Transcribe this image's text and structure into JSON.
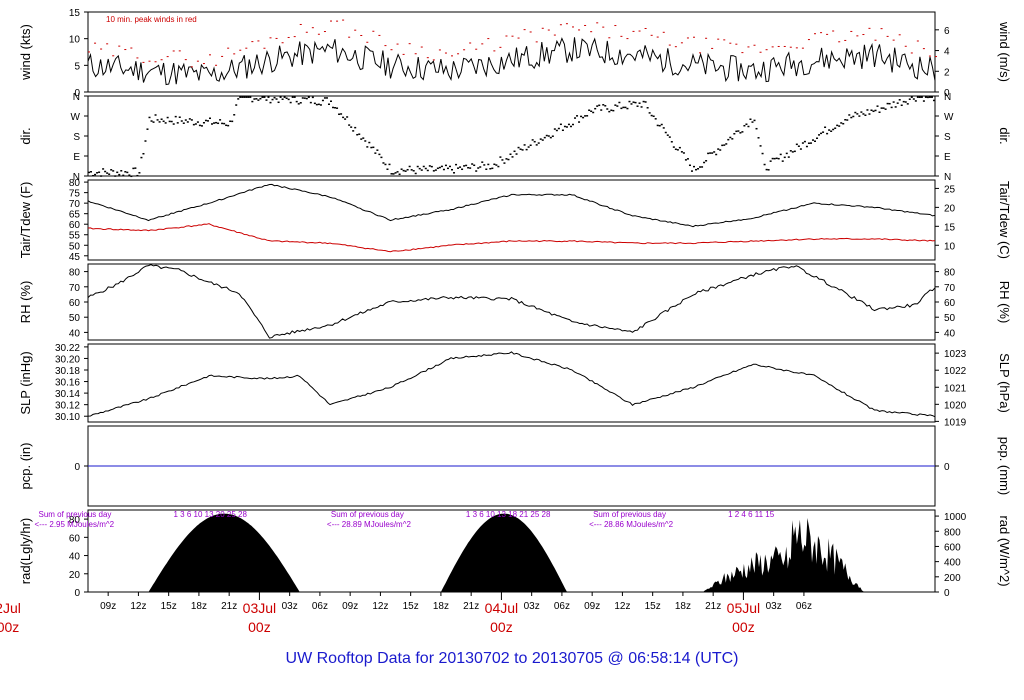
{
  "title": "UW Rooftop Data for 20130702  to  20130705 @ 06:58:14  (UTC)",
  "colors": {
    "axis": "#000000",
    "accent": "#cc0000",
    "blue": "#1a1acd",
    "purple": "#9900cc"
  },
  "chart_data": [
    {
      "type": "line",
      "panel": "wind",
      "ylabel": "wind (kts)",
      "ylabel_right": "wind (m/s)",
      "ylim": [
        0,
        15
      ],
      "yticks": [
        0,
        5,
        10,
        15
      ],
      "ylim_right": [
        0,
        7.72
      ],
      "yticks_right": [
        0,
        2,
        4,
        6
      ],
      "annotation": "10 min. peak winds in red",
      "series": [
        {
          "color": "#000000",
          "x": [
            0,
            6,
            12,
            18,
            24,
            30,
            36,
            42,
            48,
            54,
            60,
            66,
            72,
            78,
            84
          ],
          "values": [
            5,
            4,
            3,
            6,
            8,
            5,
            4,
            6,
            8,
            7,
            5,
            4,
            6,
            7,
            4
          ]
        },
        {
          "color": "#cc0000",
          "x": [
            0,
            6,
            12,
            18,
            24,
            30,
            36,
            42,
            48,
            54,
            60,
            66,
            72,
            78,
            84
          ],
          "values": [
            8,
            7,
            6,
            10,
            13,
            9,
            7,
            10,
            12,
            11,
            9,
            8,
            10,
            11,
            7
          ]
        }
      ]
    },
    {
      "type": "scatter",
      "panel": "dir",
      "ylabel": "dir.",
      "ylabel_right": "dir.",
      "ytick_labels": [
        "N",
        "E",
        "S",
        "W",
        "N"
      ],
      "ylim": [
        0,
        360
      ],
      "x": [
        0,
        5,
        6,
        14,
        15,
        24,
        30,
        35,
        40,
        50,
        55,
        60,
        66,
        67,
        75,
        78,
        82,
        84
      ],
      "values": [
        20,
        20,
        260,
        240,
        360,
        340,
        30,
        30,
        50,
        300,
        330,
        30,
        270,
        40,
        260,
        300,
        360,
        360
      ]
    },
    {
      "type": "line",
      "panel": "temperature",
      "ylabel": "Tair/Tdew (F)",
      "ylabel_right": "Tair/Tdew (C)",
      "ylim": [
        43,
        81
      ],
      "yticks": [
        45,
        50,
        55,
        60,
        65,
        70,
        75,
        80
      ],
      "yticks_right_c": [
        10,
        15,
        20,
        25
      ],
      "series": [
        {
          "name": "Tair",
          "color": "#000000",
          "x": [
            0,
            6,
            12,
            18,
            24,
            30,
            36,
            42,
            48,
            54,
            60,
            66,
            72,
            78,
            84
          ],
          "values": [
            71,
            62,
            70,
            79,
            73,
            62,
            67,
            74,
            74,
            64,
            59,
            63,
            70,
            68,
            64
          ]
        },
        {
          "name": "Tdew",
          "color": "#cc0000",
          "x": [
            0,
            6,
            12,
            18,
            24,
            30,
            36,
            42,
            48,
            54,
            60,
            66,
            72,
            78,
            84
          ],
          "values": [
            58,
            57,
            60,
            52,
            51,
            47,
            50,
            52,
            52,
            51,
            51,
            52,
            53,
            53,
            52
          ]
        }
      ]
    },
    {
      "type": "line",
      "panel": "rh",
      "ylabel": "RH (%)",
      "ylabel_right": "RH (%)",
      "ylim": [
        35,
        85
      ],
      "yticks": [
        40,
        50,
        60,
        70,
        80
      ],
      "series": [
        {
          "color": "#000000",
          "x": [
            0,
            3,
            6,
            9,
            12,
            15,
            18,
            24,
            30,
            36,
            42,
            48,
            54,
            60,
            66,
            70,
            74,
            78,
            82,
            84
          ],
          "values": [
            63,
            72,
            84,
            81,
            73,
            66,
            37,
            45,
            60,
            63,
            62,
            47,
            40,
            65,
            78,
            84,
            70,
            55,
            58,
            70
          ]
        }
      ]
    },
    {
      "type": "line",
      "panel": "slp",
      "ylabel": "SLP (inHg)",
      "ylabel_right": "SLP (hPa)",
      "ylim": [
        30.09,
        30.225
      ],
      "yticks": [
        30.1,
        30.12,
        30.14,
        30.16,
        30.18,
        30.2,
        30.22
      ],
      "yticks_right_hpa": [
        1019,
        1020,
        1021,
        1022,
        1023
      ],
      "series": [
        {
          "color": "#000000",
          "x": [
            0,
            6,
            12,
            18,
            21,
            24,
            30,
            36,
            42,
            48,
            54,
            60,
            66,
            72,
            78,
            84
          ],
          "values": [
            30.1,
            30.13,
            30.17,
            30.165,
            30.17,
            30.12,
            30.15,
            30.2,
            30.21,
            30.18,
            30.12,
            30.15,
            30.19,
            30.17,
            30.11,
            30.1
          ]
        }
      ]
    },
    {
      "type": "line",
      "panel": "pcp",
      "ylabel": "pcp. (in)",
      "ylabel_right": "pcp. (mm)",
      "ylim": [
        -1,
        1
      ],
      "yticks": [
        0
      ],
      "series": [
        {
          "color": "#1a1acd",
          "x": [
            0,
            84
          ],
          "values": [
            0,
            0
          ]
        }
      ]
    },
    {
      "type": "area",
      "panel": "radiation",
      "ylabel": "rad(Lgly/hr)",
      "ylabel_right": "rad (W/m^2)",
      "ylim": [
        0,
        90
      ],
      "yticks": [
        0,
        20,
        40,
        60,
        80
      ],
      "yticks_right": [
        0,
        200,
        400,
        600,
        800,
        1000
      ],
      "days": [
        {
          "rise": 6,
          "set": 21,
          "peak": 86
        },
        {
          "rise": 35,
          "set": 47.5,
          "peak": 86
        },
        {
          "rise": 61,
          "set": 77,
          "peak": 95
        }
      ],
      "annotations": [
        {
          "summary": "Sum of previous day",
          "total": "<--- 2.95 MJoules/m^2",
          "counts": "1   3   6   10   13   20   25   28"
        },
        {
          "summary": "Sum of previous day",
          "total": "<--- 28.89 MJoules/m^2",
          "counts": "1   3   6   10   13   18   21   25   28"
        },
        {
          "summary": "Sum of previous day",
          "total": "<--- 28.86 MJoules/m^2",
          "counts": "1   2   4   6   11   15"
        }
      ]
    }
  ],
  "x_axis": {
    "hour_labels": [
      "09z",
      "12z",
      "15z",
      "18z",
      "21z",
      "03z",
      "06z",
      "09z",
      "12z",
      "15z",
      "18z",
      "21z",
      "03z",
      "06z",
      "09z",
      "12z",
      "15z",
      "18z",
      "21z",
      "03z",
      "06z"
    ],
    "date_labels": [
      {
        "date": "2Jul",
        "time": "00z"
      },
      {
        "date": "03Jul",
        "time": "00z"
      },
      {
        "date": "04Jul",
        "time": "00z"
      },
      {
        "date": "05Jul",
        "time": "00z"
      }
    ]
  }
}
